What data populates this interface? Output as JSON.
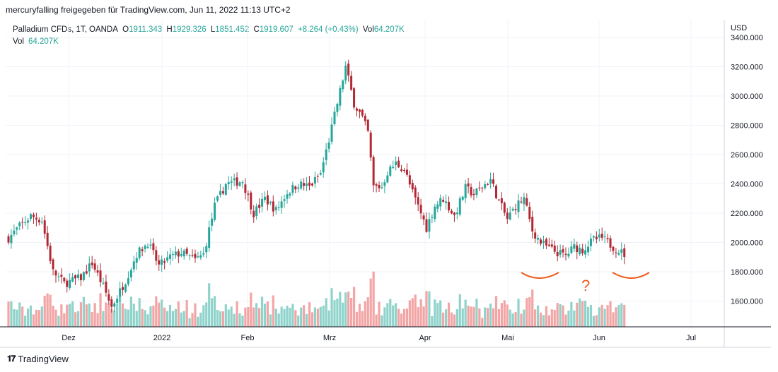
{
  "header": {
    "text": "mercuryfalling freigegeben für TradingView.com, Jun 11, 2022 11:13 UTC+2"
  },
  "legend": {
    "symbol": "Palladium CFDs, 1T, OANDA",
    "o_label": "O",
    "o_value": "1911.343",
    "h_label": "H",
    "h_value": "1929.326",
    "l_label": "L",
    "l_value": "1851.452",
    "c_label": "C",
    "c_value": "1919.607",
    "change": "+8.264 (+0.43%)",
    "vol_label": "Vol",
    "vol_value": "64.207K",
    "vol2_label": "Vol",
    "vol2_value": "64.207K"
  },
  "annotation": {
    "text": "?"
  },
  "footer": {
    "brand": "TradingView"
  },
  "colors": {
    "up": "#26a69a",
    "down": "#b22833",
    "vol_up": "#8fd3cb",
    "vol_down": "#f3a5a5",
    "annotation": "#f05a1c"
  },
  "chart_data": {
    "type": "candlestick",
    "title": "Palladium CFDs, 1T, OANDA",
    "currency_label": "USD",
    "y_ticks": [
      "3400.000",
      "3200.000",
      "3000.000",
      "2800.000",
      "2600.000",
      "2400.000",
      "2200.000",
      "2000.000",
      "1800.000",
      "1600.000"
    ],
    "y_tick_values": [
      3400,
      3200,
      3000,
      2800,
      2600,
      2400,
      2200,
      2000,
      1800,
      1600
    ],
    "ylim": [
      1440,
      3450
    ],
    "x_ticks": [
      "Dez",
      "2022",
      "Feb",
      "Mrz",
      "Apr",
      "Mai",
      "Jun",
      "Jul"
    ],
    "start_value": 2030,
    "pivots": [
      [
        0,
        2030
      ],
      [
        4,
        2110
      ],
      [
        8,
        2180
      ],
      [
        12,
        2150
      ],
      [
        16,
        1800
      ],
      [
        20,
        1720
      ],
      [
        26,
        1760
      ],
      [
        30,
        1860
      ],
      [
        34,
        1700
      ],
      [
        37,
        1560
      ],
      [
        42,
        1740
      ],
      [
        46,
        1920
      ],
      [
        50,
        2000
      ],
      [
        54,
        1840
      ],
      [
        58,
        1900
      ],
      [
        62,
        1930
      ],
      [
        67,
        1880
      ],
      [
        70,
        1920
      ],
      [
        74,
        2250
      ],
      [
        78,
        2400
      ],
      [
        84,
        2420
      ],
      [
        88,
        2200
      ],
      [
        92,
        2300
      ],
      [
        96,
        2220
      ],
      [
        100,
        2340
      ],
      [
        104,
        2400
      ],
      [
        108,
        2380
      ],
      [
        112,
        2470
      ],
      [
        115,
        2700
      ],
      [
        118,
        2950
      ],
      [
        121,
        3200
      ],
      [
        124,
        2950
      ],
      [
        127,
        2850
      ],
      [
        129,
        2750
      ],
      [
        131,
        2380
      ],
      [
        134,
        2380
      ],
      [
        136,
        2480
      ],
      [
        139,
        2540
      ],
      [
        142,
        2500
      ],
      [
        145,
        2340
      ],
      [
        148,
        2200
      ],
      [
        150,
        2100
      ],
      [
        153,
        2250
      ],
      [
        156,
        2300
      ],
      [
        160,
        2180
      ],
      [
        164,
        2370
      ],
      [
        167,
        2330
      ],
      [
        170,
        2380
      ],
      [
        173,
        2430
      ],
      [
        176,
        2280
      ],
      [
        179,
        2160
      ],
      [
        182,
        2250
      ],
      [
        185,
        2300
      ],
      [
        188,
        2080
      ],
      [
        191,
        2000
      ],
      [
        194,
        1960
      ],
      [
        197,
        1930
      ],
      [
        200,
        1910
      ],
      [
        203,
        1970
      ],
      [
        206,
        1950
      ],
      [
        210,
        2020
      ],
      [
        213,
        2030
      ],
      [
        217,
        1970
      ],
      [
        221,
        1920
      ]
    ],
    "volume_bars": 222
  }
}
